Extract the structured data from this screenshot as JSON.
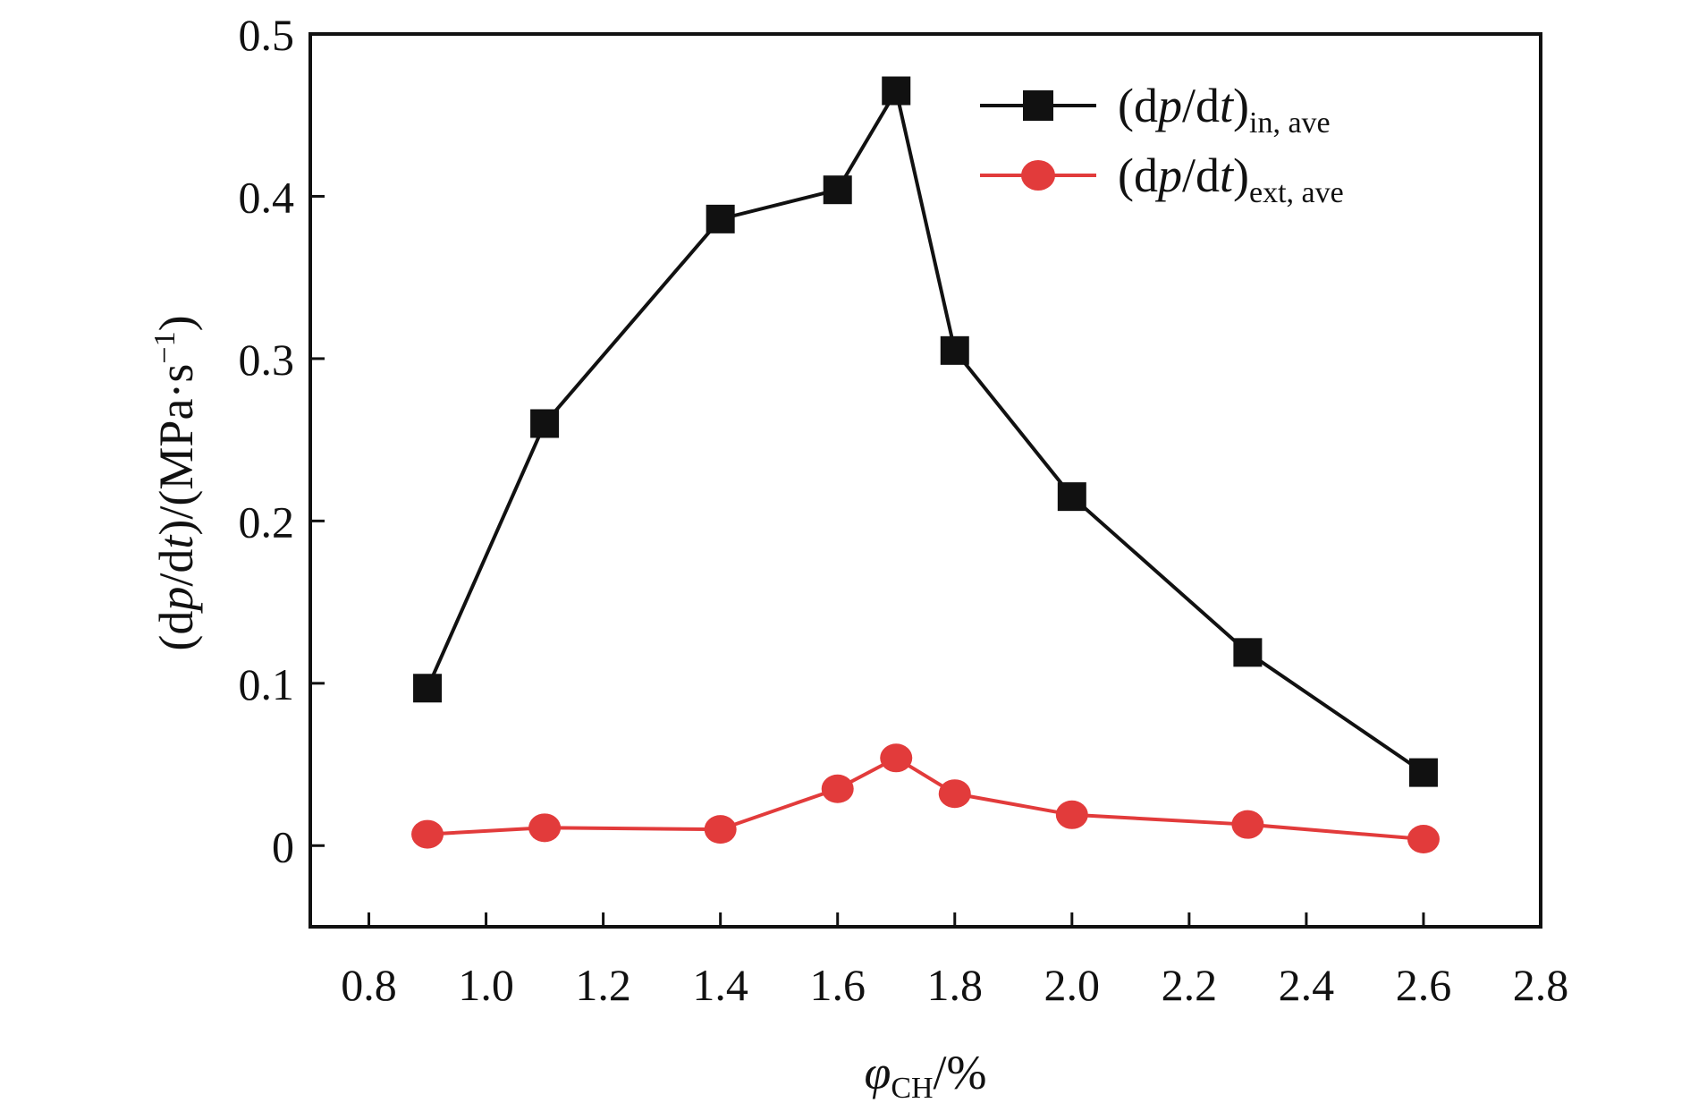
{
  "chart_data": {
    "type": "line",
    "title": "",
    "xlabel": {
      "symbol": "φ",
      "subscript": "CH",
      "unit": "/%"
    },
    "ylabel": {
      "open": "(d",
      "p": "p",
      "mid": "/d",
      "t": "t",
      "close": ")/(MPa·s",
      "exp": "−1",
      "end": ")"
    },
    "xlim": [
      0.7,
      2.8
    ],
    "ylim": [
      -0.05,
      0.5
    ],
    "xticks": [
      0.8,
      1.0,
      1.2,
      1.4,
      1.6,
      1.8,
      2.0,
      2.2,
      2.4,
      2.6,
      2.8
    ],
    "xtick_labels": [
      "0.8",
      "1.0",
      "1.2",
      "1.4",
      "1.6",
      "1.8",
      "2.0",
      "2.2",
      "2.4",
      "2.6",
      "2.8"
    ],
    "yticks": [
      0,
      0.1,
      0.2,
      0.3,
      0.4,
      0.5
    ],
    "ytick_labels": [
      "0",
      "0.1",
      "0.2",
      "0.3",
      "0.4",
      "0.5"
    ],
    "grid": false,
    "legend_position": "top-right",
    "x": [
      0.9,
      1.1,
      1.4,
      1.6,
      1.7,
      1.8,
      2.0,
      2.3,
      2.6
    ],
    "series": [
      {
        "name": "(dp/dt)in, ave",
        "label_parts": {
          "open": "(d",
          "p": "p",
          "mid": "/d",
          "t": "t",
          "close": ")",
          "sub": "in, ave"
        },
        "marker": "square",
        "color": "#111111",
        "values": [
          0.097,
          0.26,
          0.386,
          0.404,
          0.465,
          0.305,
          0.215,
          0.119,
          0.045
        ]
      },
      {
        "name": "(dp/dt)ext, ave",
        "label_parts": {
          "open": "(d",
          "p": "p",
          "mid": "/d",
          "t": "t",
          "close": ")",
          "sub": "ext, ave"
        },
        "marker": "circle",
        "color": "#e23b3b",
        "values": [
          0.007,
          0.011,
          0.01,
          0.035,
          0.054,
          0.032,
          0.019,
          0.013,
          0.004
        ]
      }
    ]
  }
}
